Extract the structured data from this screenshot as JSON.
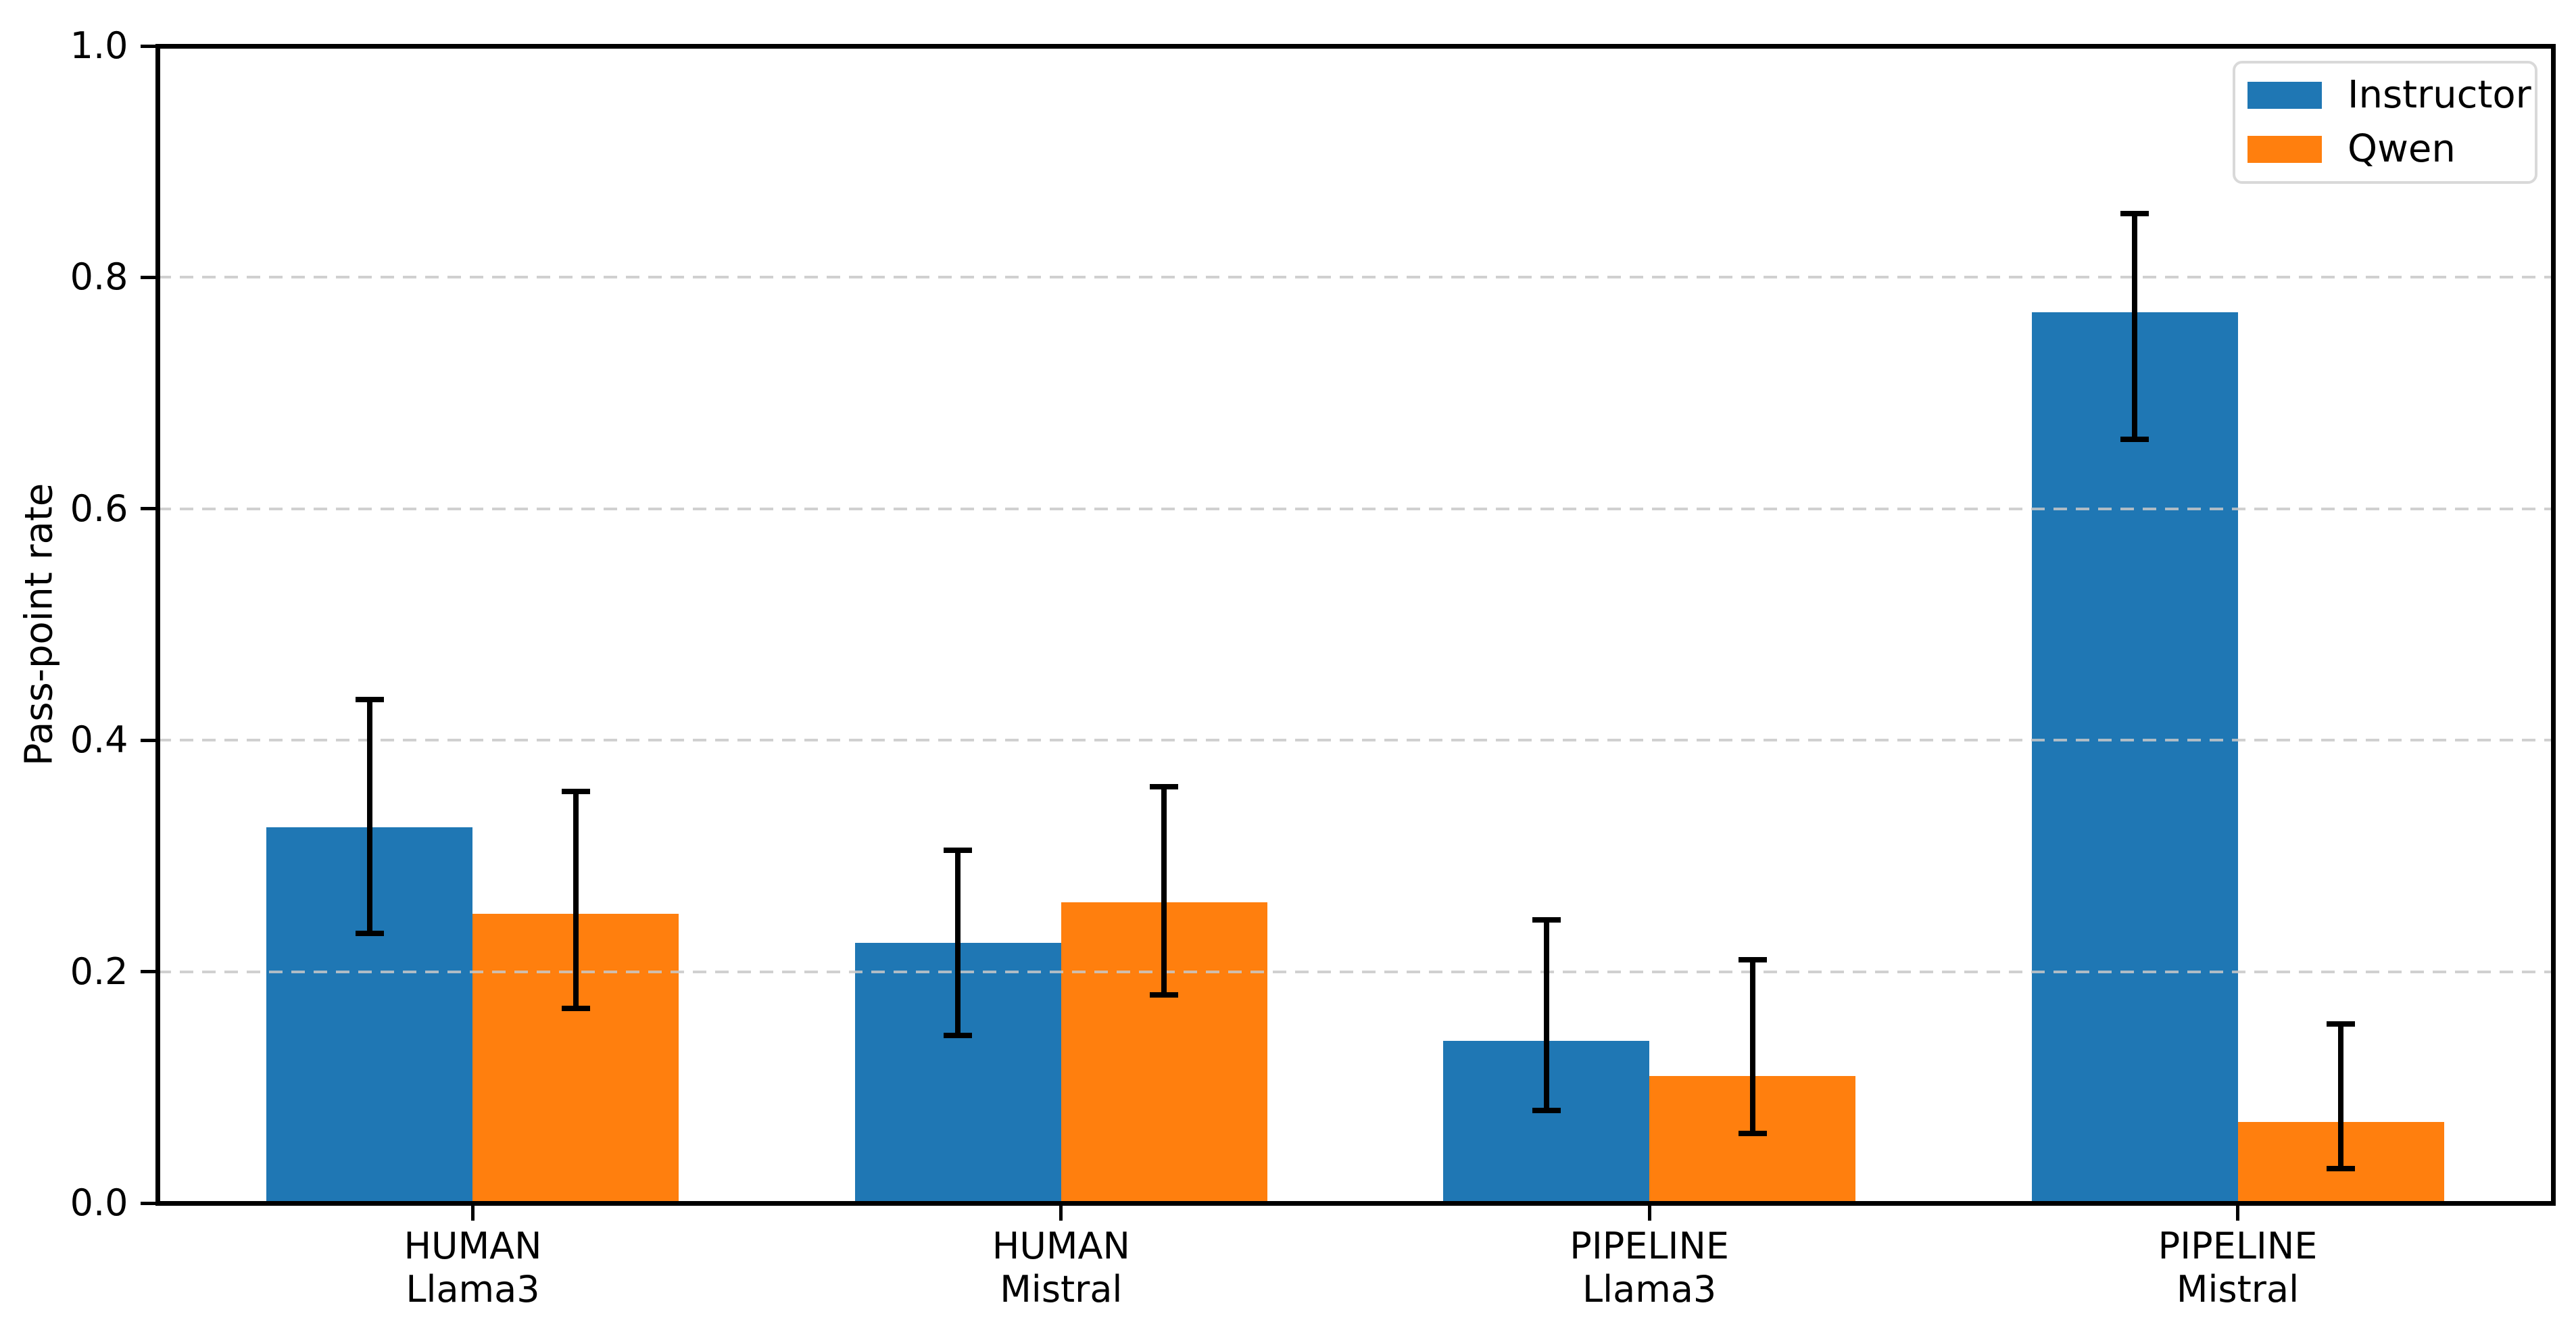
{
  "chart_data": {
    "type": "bar",
    "title": "",
    "xlabel": "",
    "ylabel": "Pass-point rate",
    "ylim": [
      0.0,
      1.0
    ],
    "yticks": [
      "0.0",
      "0.2",
      "0.4",
      "0.6",
      "0.8",
      "1.0"
    ],
    "ytick_values": [
      0.0,
      0.2,
      0.4,
      0.6,
      0.8,
      1.0
    ],
    "grid": "horizontal dashed gridlines at y ticks, drawn above bars",
    "legend_position": "upper right",
    "categories": [
      "HUMAN Llama3",
      "HUMAN Mistral",
      "PIPELINE Llama3",
      "PIPELINE Mistral"
    ],
    "category_lines": [
      [
        "HUMAN",
        "Llama3"
      ],
      [
        "HUMAN",
        "Mistral"
      ],
      [
        "PIPELINE",
        "Llama3"
      ],
      [
        "PIPELINE",
        "Mistral"
      ]
    ],
    "series": [
      {
        "name": "Instructor",
        "color": "#1f77b4",
        "values": [
          0.325,
          0.225,
          0.14,
          0.77
        ],
        "err_low": [
          0.233,
          0.145,
          0.08,
          0.66
        ],
        "err_high": [
          0.435,
          0.305,
          0.245,
          0.855
        ]
      },
      {
        "name": "Qwen",
        "color": "#ff7f0e",
        "values": [
          0.25,
          0.26,
          0.11,
          0.07
        ],
        "err_low": [
          0.168,
          0.18,
          0.06,
          0.03
        ],
        "err_high": [
          0.356,
          0.36,
          0.21,
          0.155
        ]
      }
    ]
  },
  "colors": {
    "background": "#ffffff",
    "spine": "#000000",
    "gridline": "#c8c8c8",
    "errorbar": "#000000",
    "legend_border": "#d9d9d9",
    "text": "#000000"
  }
}
